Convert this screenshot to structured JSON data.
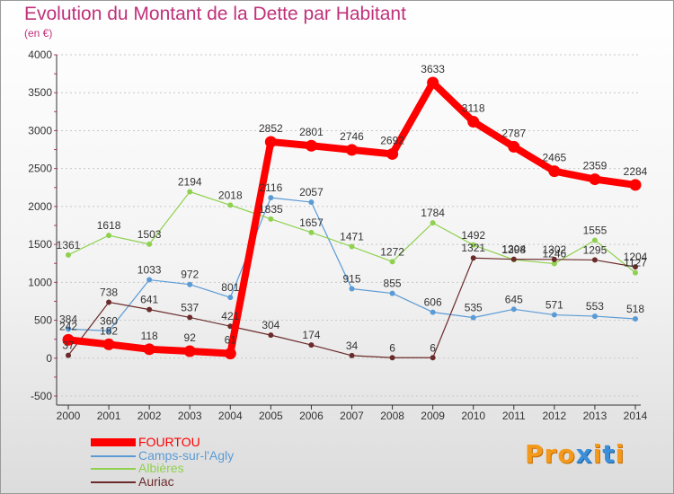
{
  "chart_data": {
    "type": "line",
    "title": "Evolution du Montant de la Dette par Habitant",
    "subtitle": "(en €)",
    "x": [
      "2000",
      "2001",
      "2002",
      "2003",
      "2004",
      "2005",
      "2006",
      "2007",
      "2008",
      "2009",
      "2010",
      "2011",
      "2012",
      "2013",
      "2014"
    ],
    "ylim": [
      -500,
      4000
    ],
    "yticks": [
      -500,
      0,
      500,
      1000,
      1500,
      2000,
      2500,
      3000,
      3500,
      4000
    ],
    "legend_position": "bottom-left",
    "series": [
      {
        "name": "FOURTOU",
        "color": "#ff0000",
        "emphasis": true,
        "values": [
          242,
          182,
          118,
          92,
          61,
          2852,
          2801,
          2746,
          2692,
          3633,
          3118,
          2787,
          2465,
          2359,
          2284
        ]
      },
      {
        "name": "Camps-sur-l'Agly",
        "color": "#5b9bd5",
        "emphasis": false,
        "values": [
          384,
          360,
          1033,
          972,
          801,
          2116,
          2057,
          915,
          855,
          606,
          535,
          645,
          571,
          553,
          518
        ]
      },
      {
        "name": "Albières",
        "color": "#8fd14f",
        "emphasis": false,
        "values": [
          1361,
          1618,
          1503,
          2194,
          2018,
          1835,
          1657,
          1471,
          1272,
          1784,
          1492,
          1298,
          1246,
          1555,
          1127
        ]
      },
      {
        "name": "Auriac",
        "color": "#6b2b2b",
        "emphasis": false,
        "values": [
          37,
          738,
          641,
          537,
          421,
          304,
          174,
          34,
          6,
          6,
          1321,
          1304,
          1302,
          1295,
          1204
        ]
      }
    ]
  },
  "logo_text": "Proxiti",
  "logo_colors": {
    "primary": "#f39a1c",
    "accent": "#3b8fd9"
  }
}
